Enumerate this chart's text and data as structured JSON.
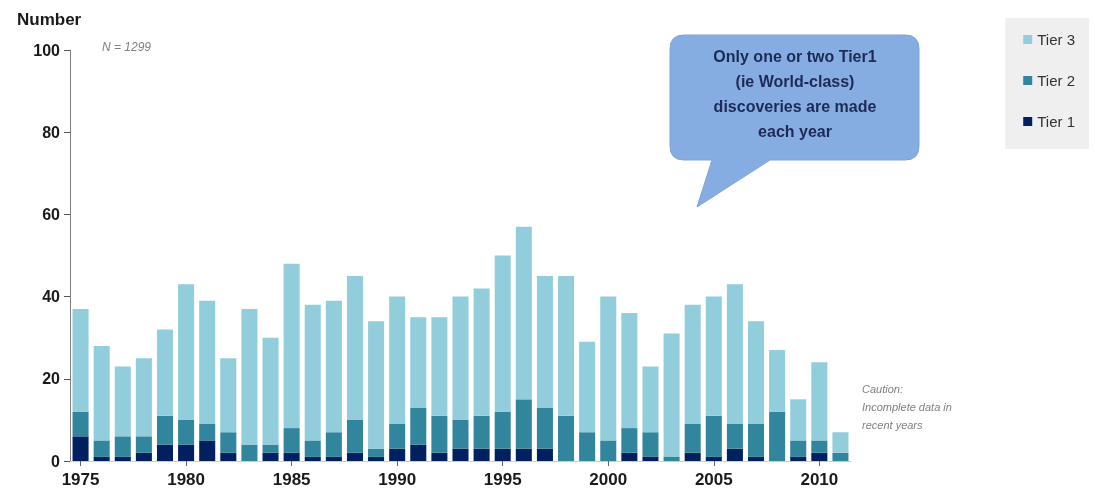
{
  "chart_data": {
    "type": "bar",
    "ylabel": "Number",
    "categories": [
      "1975",
      null,
      null,
      null,
      null,
      "1980",
      null,
      null,
      null,
      null,
      "1985",
      null,
      null,
      null,
      null,
      "1990",
      null,
      null,
      null,
      null,
      "1995",
      null,
      null,
      null,
      null,
      "2000",
      null,
      null,
      null,
      null,
      "2005",
      null,
      null,
      null,
      null,
      "2010",
      null
    ],
    "series": [
      {
        "name": "Tier 1",
        "color": "#002060",
        "values": [
          6,
          1,
          1,
          2,
          4,
          4,
          5,
          2,
          0,
          2,
          2,
          1,
          1,
          2,
          1,
          3,
          4,
          2,
          3,
          3,
          3,
          3,
          3,
          0,
          0,
          0,
          2,
          1,
          0,
          2,
          1,
          3,
          1,
          0,
          1,
          2,
          0
        ]
      },
      {
        "name": "Tier 2",
        "color": "#31859c",
        "values": [
          6,
          4,
          5,
          4,
          7,
          6,
          4,
          5,
          4,
          2,
          6,
          4,
          6,
          8,
          2,
          6,
          9,
          9,
          7,
          8,
          9,
          12,
          10,
          11,
          7,
          5,
          6,
          6,
          1,
          7,
          10,
          6,
          8,
          12,
          4,
          3,
          2
        ]
      },
      {
        "name": "Tier 3",
        "color": "#92cddc",
        "values": [
          25,
          23,
          17,
          19,
          21,
          33,
          30,
          18,
          33,
          26,
          40,
          33,
          32,
          35,
          31,
          31,
          22,
          24,
          30,
          31,
          38,
          42,
          32,
          34,
          22,
          35,
          28,
          16,
          30,
          29,
          29,
          34,
          25,
          15,
          10,
          19,
          5
        ]
      }
    ],
    "stacked": true,
    "ylim": [
      0,
      100
    ],
    "yticks": [
      0,
      20,
      40,
      60,
      80,
      100
    ],
    "legend": "top right",
    "annotations": [
      "N = 1299",
      "Only one or two Tier1\n(ie World-class)\ndiscoveries are made\neach year",
      "Caution:\nIncomplete data in\nrecent years"
    ]
  }
}
